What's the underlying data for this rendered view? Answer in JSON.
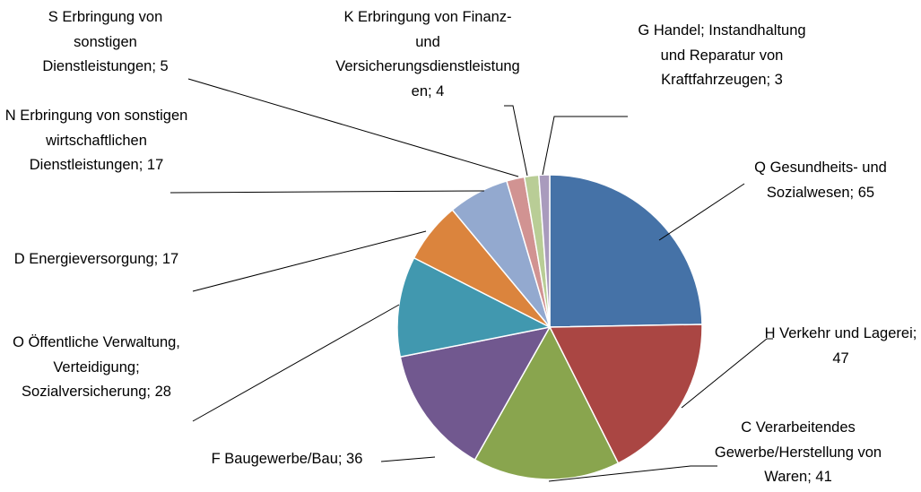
{
  "chart_data": {
    "type": "pie",
    "values": [
      65,
      47,
      41,
      36,
      28,
      17,
      17,
      5,
      4,
      3
    ],
    "value_labels": [
      "Q Gesundheits- und Sozialwesen; 65",
      "H Verkehr und Lagerei; 47",
      "C Verarbeitendes Gewerbe/Herstellung von Waren; 41",
      "F Baugewerbe/Bau; 36",
      "O Öffentliche Verwaltung, Verteidigung; Sozialversicherung; 28",
      "D Energieversorgung; 17",
      "N Erbringung von sonstigen wirtschaftlichen Dienstleistungen; 17",
      "S Erbringung von sonstigen Dienstleistungen; 5",
      "K Erbringung von Finanz- und Versicherungsdienstleistungen; 4",
      "G Handel; Instandhaltung und Reparatur von Kraftfahrzeugen; 3"
    ],
    "colors": [
      "#4572a7",
      "#aa4643",
      "#89a54e",
      "#71588f",
      "#4198af",
      "#db843d",
      "#93a9cf",
      "#d19392",
      "#b9cd96",
      "#a99bbd"
    ]
  }
}
